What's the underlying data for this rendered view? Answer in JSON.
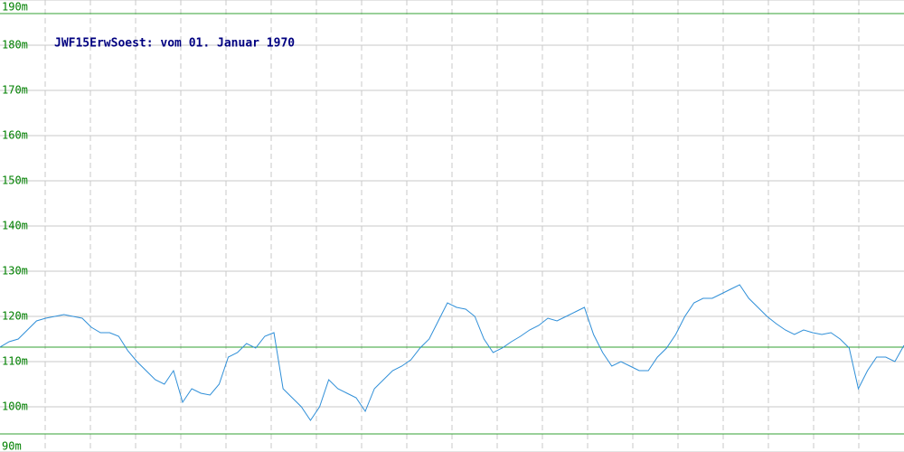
{
  "chart_data": {
    "type": "line",
    "title": "JWF15ErwSoest: vom 01. Januar 1970",
    "series": [
      {
        "color": "#2f8fd8",
        "values": [
          113.2,
          114.4,
          115,
          117,
          119,
          119.6,
          120,
          120.4,
          120,
          119.6,
          117.6,
          116.4,
          116.4,
          115.6,
          112.4,
          110,
          108,
          106,
          105,
          108,
          101,
          104,
          103,
          102.6,
          105,
          111,
          112,
          114,
          113,
          115.6,
          116.4,
          104,
          102,
          100,
          97,
          100,
          106,
          104,
          103,
          102,
          99,
          104,
          106,
          108,
          109,
          110.4,
          113,
          115,
          119,
          123,
          122,
          121.6,
          120,
          115,
          112,
          113,
          114.4,
          115.6,
          117,
          118,
          119.6,
          119,
          120,
          121,
          122,
          116,
          112,
          109,
          110,
          109,
          108,
          108,
          111,
          113,
          116,
          120,
          123,
          124,
          124,
          125,
          126,
          127,
          124,
          122,
          120,
          118.4,
          117,
          116,
          117,
          116.4,
          116,
          116.4,
          115,
          113,
          104,
          108,
          111,
          111,
          110,
          113.6
        ]
      }
    ],
    "ylim": [
      90,
      190
    ],
    "yticks": [
      {
        "value": 90,
        "label": "90m"
      },
      {
        "value": 100,
        "label": "100m"
      },
      {
        "value": 110,
        "label": "110m"
      },
      {
        "value": 120,
        "label": "120m"
      },
      {
        "value": 130,
        "label": "130m"
      },
      {
        "value": 140,
        "label": "140m"
      },
      {
        "value": 150,
        "label": "150m"
      },
      {
        "value": 160,
        "label": "160m"
      },
      {
        "value": 170,
        "label": "170m"
      },
      {
        "value": 180,
        "label": "180m"
      },
      {
        "value": 190,
        "label": "190m"
      }
    ],
    "reference_lines": {
      "color": "#33a033",
      "values": [
        187,
        113.2,
        94
      ]
    },
    "grid": true
  }
}
